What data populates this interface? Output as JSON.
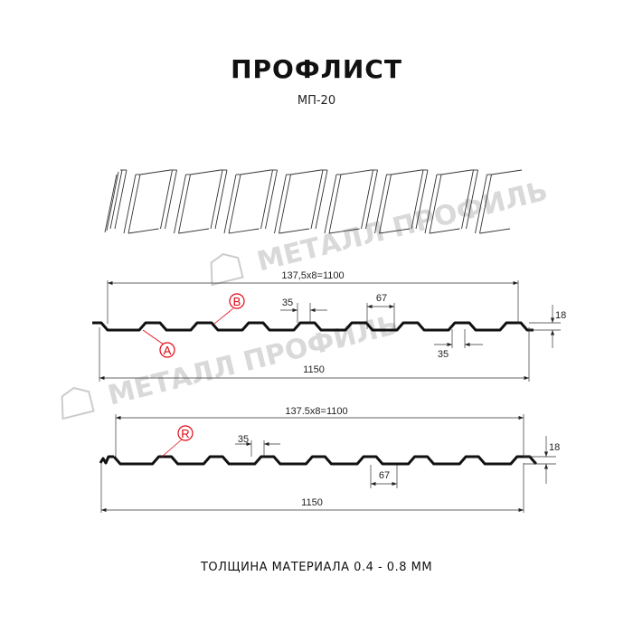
{
  "header": {
    "title": "ПРОФЛИСТ",
    "subtitle": "МП-20"
  },
  "watermark": {
    "text": "МЕТАЛЛ ПРОФИЛЬ"
  },
  "profile_top": {
    "pitch_label": "137,5x8=1100",
    "total_label": "1150",
    "ridge_top_label": "35",
    "valley_label": "67",
    "ridge_bottom_label": "35",
    "height_label": "18",
    "marker_a": "A",
    "marker_b": "B"
  },
  "profile_bottom": {
    "pitch_label": "137.5x8=1100",
    "total_label": "1150",
    "ridge_top_label": "35",
    "valley_label": "67",
    "height_label": "18",
    "marker_r": "R"
  },
  "footer": {
    "text": "ТОЛЩИНА МАТЕРИАЛА 0.4 - 0.8 ММ"
  },
  "colors": {
    "line": "#111111",
    "dimension": "#333333",
    "marker": "#e30613",
    "watermark": "#bbbbbb"
  }
}
